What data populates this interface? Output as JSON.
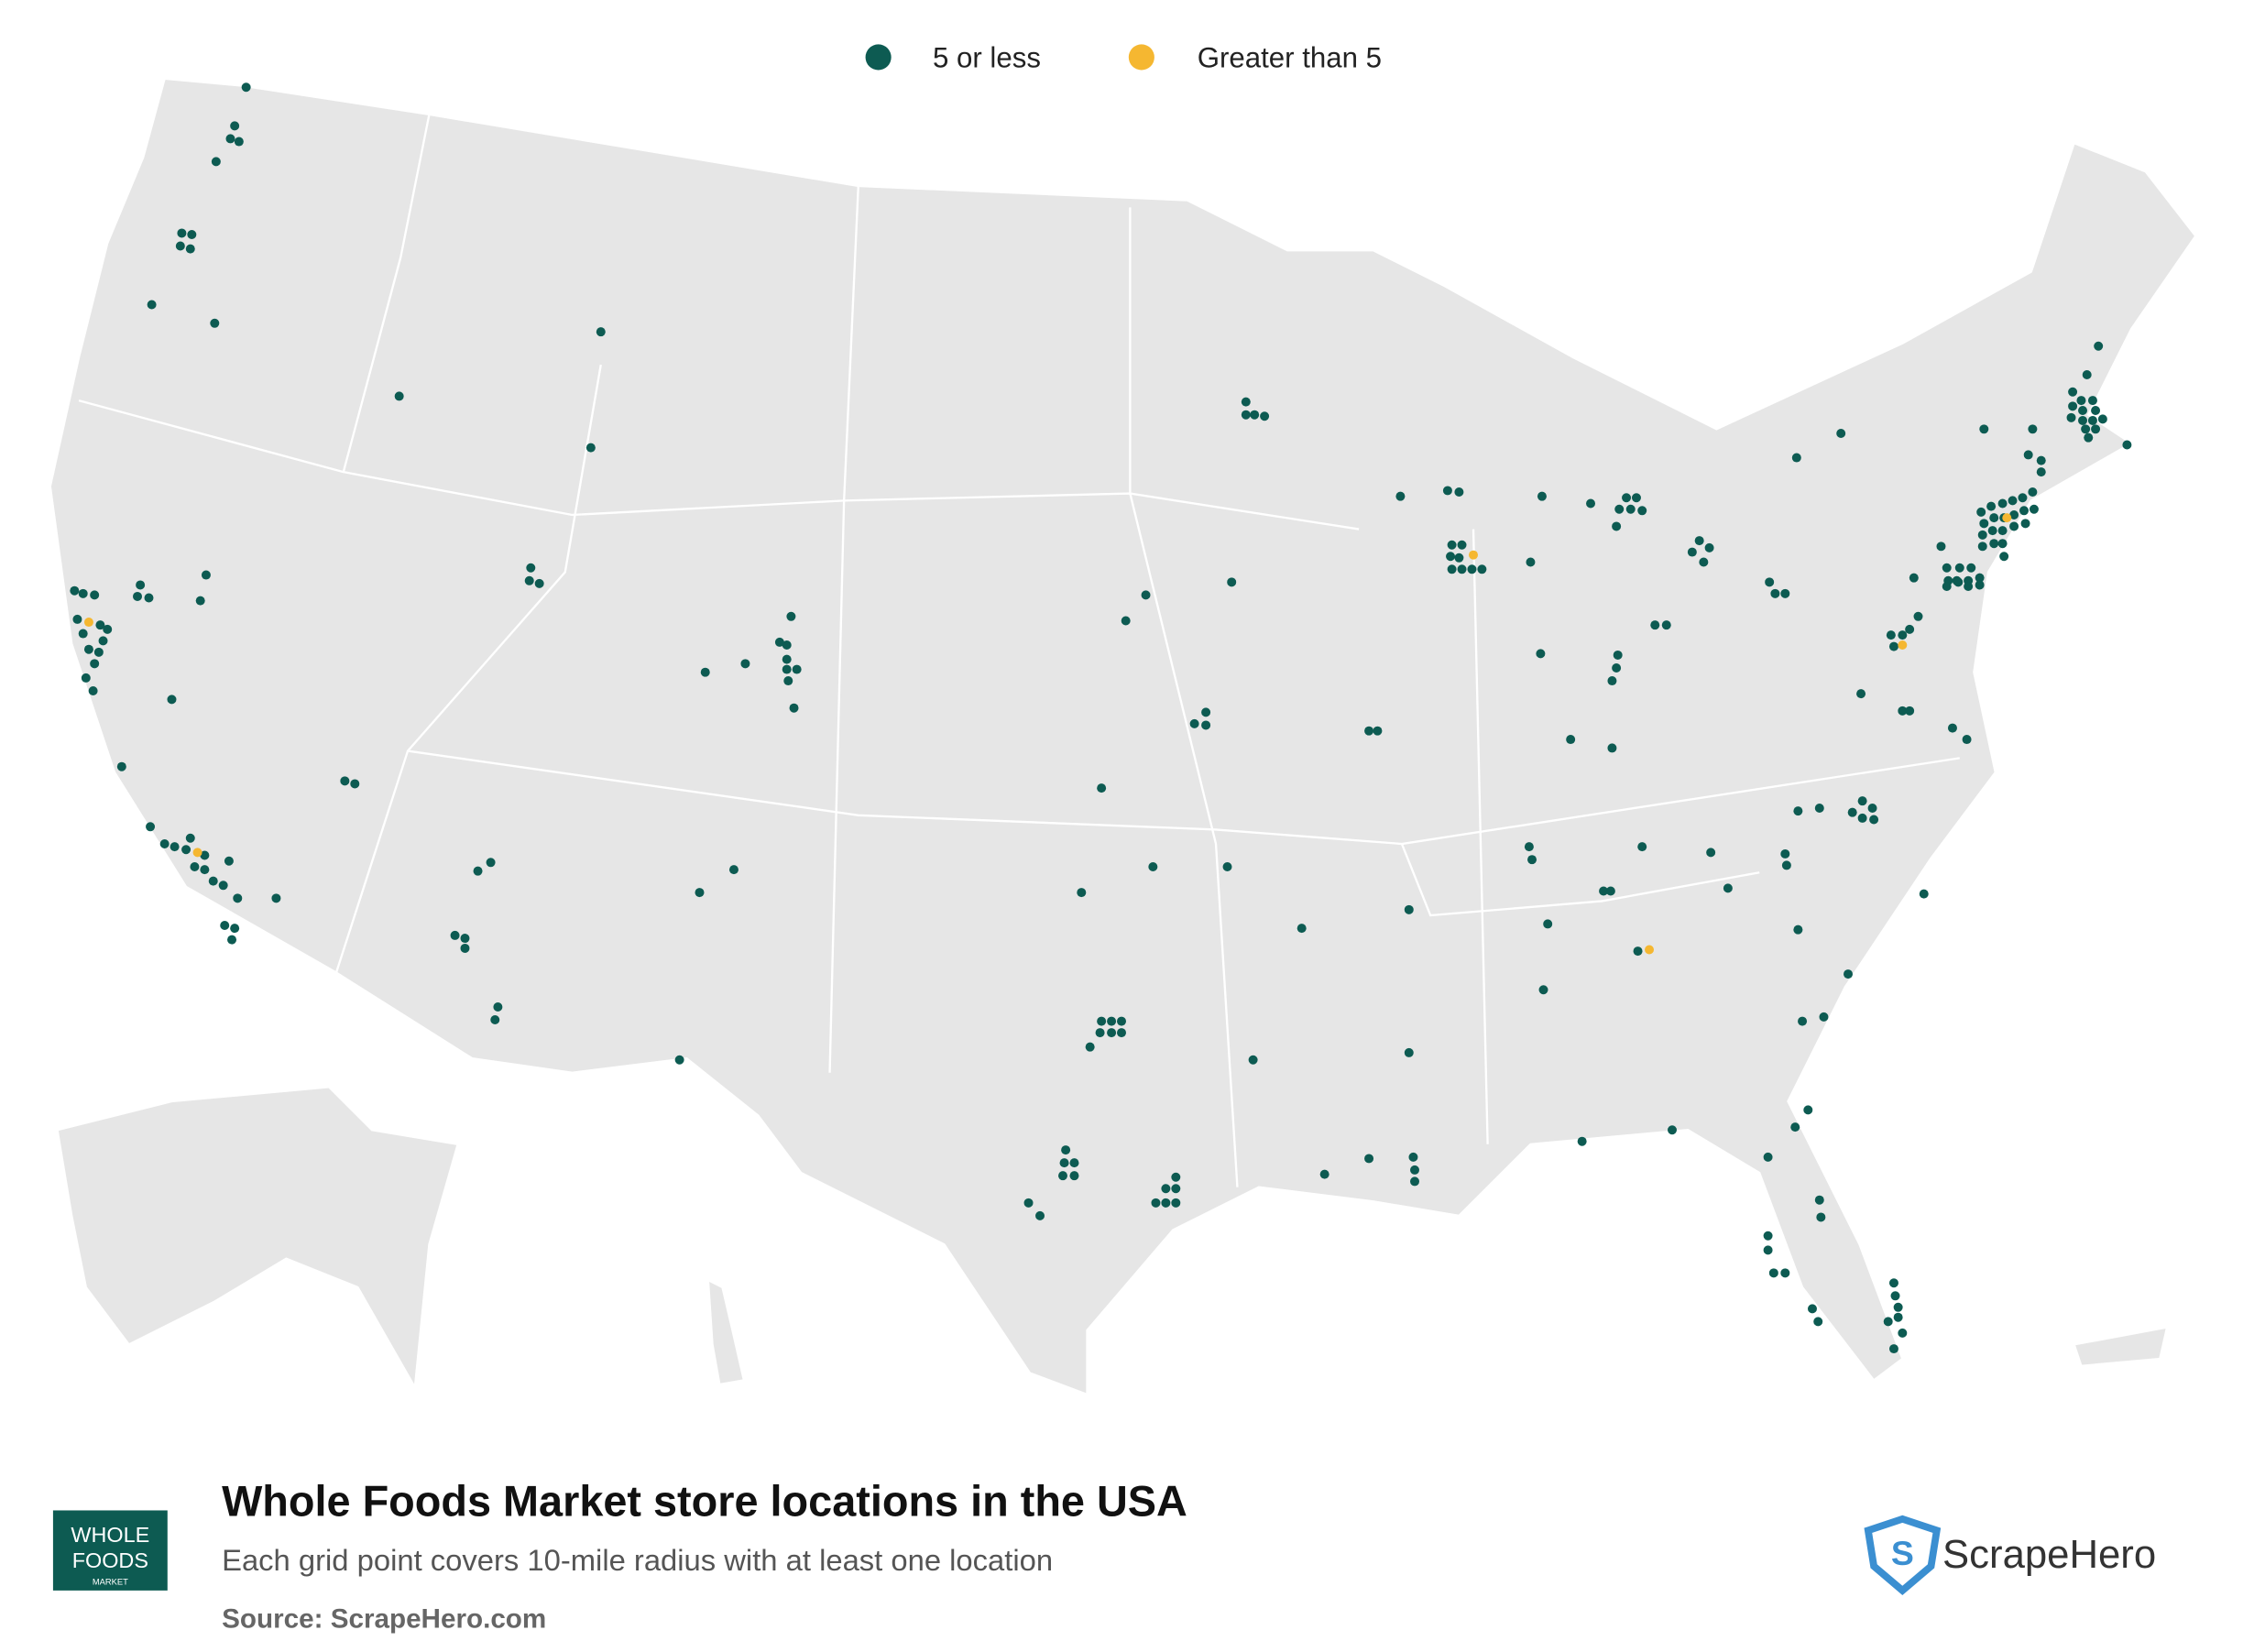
{
  "legend": {
    "items": [
      {
        "label": "5 or less",
        "color": "#0d5b52"
      },
      {
        "label": "Greater than 5",
        "color": "#f5b731"
      }
    ]
  },
  "footer": {
    "title": "Whole Foods Market store locations in the USA",
    "subtitle": "Each grid point covers 10-mile radius with at least one location",
    "source": "Source: ScrapeHero.com"
  },
  "logos": {
    "whole_foods": [
      "WHOLE",
      "FOODS",
      "MARKET"
    ],
    "scrapehero": "ScrapeHero"
  }
}
